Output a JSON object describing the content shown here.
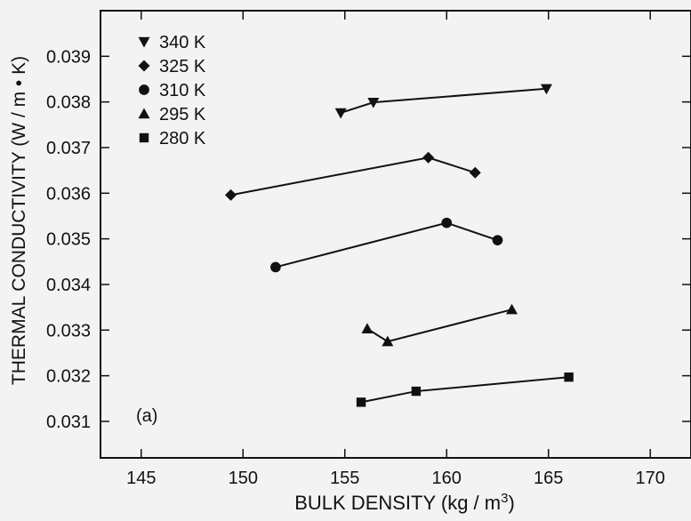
{
  "chart_data": {
    "type": "line",
    "xlabel": "BULK  DENSITY (kg / m",
    "xlabel_superscript": "3",
    "xlabel_suffix": ")",
    "ylabel": "THERMAL  CONDUCTIVITY (W / m • K)",
    "annotation": "(a)",
    "xlim": [
      143,
      172
    ],
    "ylim": [
      0.0302,
      0.04
    ],
    "xticks": [
      145,
      150,
      155,
      160,
      165,
      170
    ],
    "yticks": [
      0.031,
      0.032,
      0.033,
      0.034,
      0.035,
      0.036,
      0.037,
      0.038,
      0.039
    ],
    "xtick_labels": [
      "145",
      "150",
      "155",
      "160",
      "165",
      "170"
    ],
    "ytick_labels": [
      "0.031",
      "0.032",
      "0.033",
      "0.034",
      "0.035",
      "0.036",
      "0.037",
      "0.038",
      "0.039"
    ],
    "legend_position": "top-left",
    "grid": false,
    "series": [
      {
        "name": "340 K",
        "marker": "triangle-down",
        "x": [
          154.8,
          156.4,
          164.9
        ],
        "y": [
          0.03776,
          0.03799,
          0.03829
        ]
      },
      {
        "name": "325 K",
        "marker": "diamond",
        "x": [
          149.4,
          159.1,
          161.4
        ],
        "y": [
          0.03596,
          0.03678,
          0.03645
        ]
      },
      {
        "name": "310 K",
        "marker": "circle",
        "x": [
          151.6,
          160.0,
          162.5
        ],
        "y": [
          0.03438,
          0.03535,
          0.03497
        ]
      },
      {
        "name": "295 K",
        "marker": "triangle-up",
        "x": [
          156.1,
          157.1,
          163.2
        ],
        "y": [
          0.03303,
          0.03275,
          0.03345
        ]
      },
      {
        "name": "280 K",
        "marker": "square",
        "x": [
          155.8,
          158.5,
          166.0
        ],
        "y": [
          0.03142,
          0.03166,
          0.03197
        ]
      }
    ]
  }
}
